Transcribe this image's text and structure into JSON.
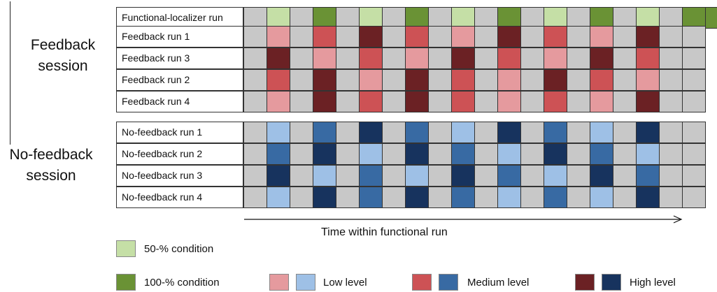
{
  "sessions": [
    {
      "label_line1": "Feedback",
      "label_line2": "session"
    },
    {
      "label_line1": "No-feedback",
      "label_line2": "session"
    }
  ],
  "colors": {
    "gray": "#c8c8c8",
    "L": "#e59a9e",
    "M": "#cd5255",
    "H": "#6b2124",
    "l": "#9ec0e6",
    "m": "#386aa3",
    "h": "#17335e",
    "g": "#c5dfa6",
    "G": "#6a9235"
  },
  "rows": [
    {
      "label": "Functional-localizer run",
      "cells": "-g-G-g-G-g-G-g-G-g-GG"
    },
    {
      "label": "Feedback run 1",
      "cells": "-L-M-H-M-L-H-M-L-H--"
    },
    {
      "label": "Feedback run 3",
      "cells": "-H-L-M-L-H-M-L-H-M--"
    },
    {
      "label": "Feedback run 2",
      "cells": "-M-H-L-H-M-L-H-M-L--"
    },
    {
      "label": "Feedback run 4",
      "cells": "-L-H-M-H-M-L-M-L-H--"
    },
    {
      "label": "No-feedback run 1",
      "cells": "-l-m-h-m-l-h-m-l-h--"
    },
    {
      "label": "No-feedback run 2",
      "cells": "-m-h-l-h-m-l-h-m-l--"
    },
    {
      "label": "No-feedback run 3",
      "cells": "-h-l-m-l-h-m-l-h-m--"
    },
    {
      "label": "No-feedback run 4",
      "cells": "-l-h-m-h-m-l-m-l-h--"
    }
  ],
  "time_axis_label": "Time within functional run",
  "legend": {
    "cond50": {
      "label": "50-% condition",
      "color": "#c5dfa6"
    },
    "cond100": {
      "label": "100-% condition",
      "color": "#6a9235"
    },
    "low": {
      "label": "Low level",
      "colors": [
        "#e59a9e",
        "#9ec0e6"
      ]
    },
    "medium": {
      "label": "Medium level",
      "colors": [
        "#cd5255",
        "#386aa3"
      ]
    },
    "high": {
      "label": "High level",
      "colors": [
        "#6b2124",
        "#17335e"
      ]
    }
  }
}
